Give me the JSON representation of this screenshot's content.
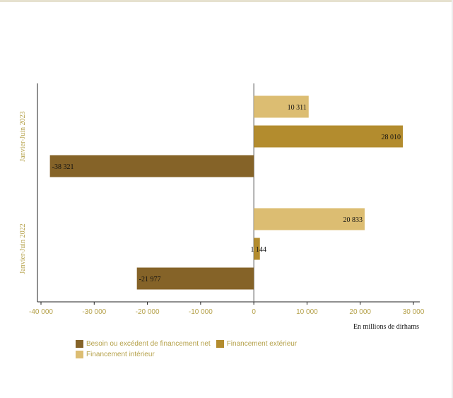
{
  "chart_data": {
    "type": "bar",
    "orientation": "horizontal",
    "categories": [
      "Janvier-Juin 2023",
      "Janvier-Juin 2022"
    ],
    "series": [
      {
        "name": "Financement intérieur",
        "color": "#dcbd72",
        "values": [
          10311,
          20833
        ],
        "labels": [
          "10 311",
          "20 833"
        ]
      },
      {
        "name": "Financement extérieur",
        "color": "#b38c2e",
        "values": [
          28010,
          1144
        ],
        "labels": [
          "28 010",
          "1 144"
        ]
      },
      {
        "name": "Besoin ou excédent de financement net",
        "color": "#856328",
        "values": [
          -38321,
          -21977
        ],
        "labels": [
          "-38 321",
          "-21 977"
        ]
      }
    ],
    "xlim": [
      -40000,
      30000
    ],
    "xticks": [
      -40000,
      -30000,
      -20000,
      -10000,
      0,
      10000,
      20000,
      30000
    ],
    "xtick_labels": [
      "-40 000",
      "-30 000",
      "-20 000",
      "-10 000",
      "0",
      "10 000",
      "20 000",
      "30 000"
    ],
    "xlabel": "En millions de dirhams",
    "title": "",
    "legend_order": [
      "Besoin ou excédent de financement net",
      "Financement extérieur",
      "Financement intérieur"
    ],
    "legend_position": "bottom-left",
    "grid": false
  }
}
